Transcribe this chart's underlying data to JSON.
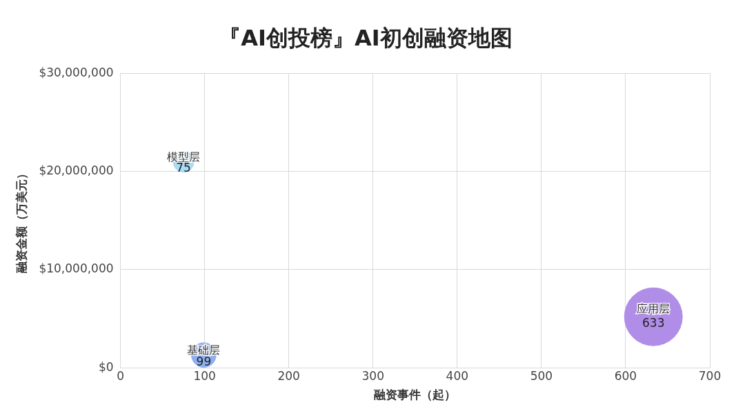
{
  "chart_data": {
    "type": "bubble",
    "title": "『AI创投榜』AI初创融资地图",
    "xlabel": "融资事件（起）",
    "ylabel": "融资金额（万美元）",
    "xlim": [
      0,
      700
    ],
    "xticks": [
      0,
      100,
      200,
      300,
      400,
      500,
      600,
      700
    ],
    "ylim": [
      0,
      30000000
    ],
    "yticks": [
      {
        "value": 0,
        "label": "$0"
      },
      {
        "value": 10000000,
        "label": "$10,000,000"
      },
      {
        "value": 20000000,
        "label": "$20,000,000"
      },
      {
        "value": 30000000,
        "label": "$30,000,000"
      }
    ],
    "grid": true,
    "legend": false,
    "annotations": [
      {
        "text": "75",
        "x": 75,
        "y": 21000000
      },
      {
        "text": "99",
        "x": 99,
        "y": 1300000
      },
      {
        "text": "633",
        "x": 633,
        "y": 5200000
      }
    ],
    "series": [
      {
        "name": "模型层",
        "color": "#a8dcf5",
        "x": [
          75
        ],
        "values": [
          21000000
        ],
        "sizes": [
          0.13
        ]
      },
      {
        "name": "基础层",
        "color": "#8fb0f0",
        "x": [
          99
        ],
        "values": [
          1300000
        ],
        "sizes": [
          0.18
        ]
      },
      {
        "name": "应用层",
        "color": "#b08ee8",
        "x": [
          633
        ],
        "values": [
          5200000
        ],
        "sizes": [
          1
        ]
      }
    ]
  }
}
